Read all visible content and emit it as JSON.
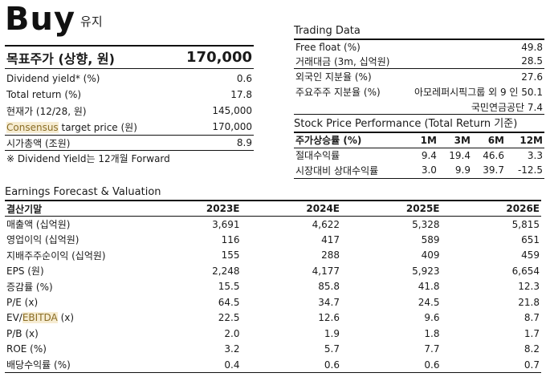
{
  "rating": {
    "main": "Buy",
    "sub": "유지"
  },
  "target": {
    "label": "목표주가 (상향, 원)",
    "value": "170,000"
  },
  "key_metrics": [
    {
      "label": "Dividend yield* (%)",
      "value": "0.6"
    },
    {
      "label": "Total return (%)",
      "value": "17.8"
    },
    {
      "label": "현재가 (12/28, 원)",
      "value": "145,000"
    },
    {
      "label_hl": "Consensus",
      "label_rest": " target price (원)",
      "value": "170,000"
    },
    {
      "label": "시가총액 (조원)",
      "value": "8.9"
    }
  ],
  "note": "※ Dividend Yield는 12개월 Forward",
  "trading": {
    "title": "Trading Data",
    "rows": [
      {
        "label": "Free float (%)",
        "value": "49.8"
      },
      {
        "label": "거래대금 (3m, 십억원)",
        "value": "28.5"
      },
      {
        "label": "외국인 지분율 (%)",
        "value": "27.6"
      },
      {
        "label": "주요주주 지분율 (%)",
        "value": "아모레퍼시픽그룹 외 9 인 50.1"
      },
      {
        "label": "",
        "value": "국민연금공단 7.4"
      }
    ]
  },
  "performance": {
    "title": "Stock Price Performance (Total Return 기준)",
    "headers": [
      "주가상승률 (%)",
      "1M",
      "3M",
      "6M",
      "12M"
    ],
    "rows": [
      [
        "절대수익률",
        "9.4",
        "19.4",
        "46.6",
        "3.3"
      ],
      [
        "시장대비 상대수익률",
        "3.0",
        "9.9",
        "39.7",
        "-12.5"
      ]
    ]
  },
  "earnings": {
    "title": "Earnings Forecast & Valuation",
    "headers": [
      "결산기말",
      "2023E",
      "2024E",
      "2025E",
      "2026E"
    ],
    "rows": [
      {
        "label": "매출액 (십억원)",
        "values": [
          "3,691",
          "4,622",
          "5,328",
          "5,815"
        ]
      },
      {
        "label": "영업이익 (십억원)",
        "values": [
          "116",
          "417",
          "589",
          "651"
        ]
      },
      {
        "label": "지배주주순이익 (십억원)",
        "values": [
          "155",
          "288",
          "409",
          "459"
        ]
      },
      {
        "label": "EPS (원)",
        "values": [
          "2,248",
          "4,177",
          "5,923",
          "6,654"
        ]
      },
      {
        "label": "증감률 (%)",
        "values": [
          "15.5",
          "85.8",
          "41.8",
          "12.3"
        ]
      },
      {
        "label": "P/E (x)",
        "values": [
          "64.5",
          "34.7",
          "24.5",
          "21.8"
        ]
      },
      {
        "label_pre": "EV/",
        "label_hl": "EBITDA",
        "label_post": " (x)",
        "values": [
          "22.5",
          "12.6",
          "9.6",
          "8.7"
        ]
      },
      {
        "label": "P/B (x)",
        "values": [
          "2.0",
          "1.9",
          "1.8",
          "1.7"
        ]
      },
      {
        "label": "ROE (%)",
        "values": [
          "3.2",
          "5.7",
          "7.7",
          "8.2"
        ]
      },
      {
        "label": "배당수익률 (%)",
        "values": [
          "0.4",
          "0.6",
          "0.6",
          "0.7"
        ]
      }
    ]
  },
  "colors": {
    "highlight_bg": "#f6ecd2",
    "highlight_text": "#8a6d25",
    "rule": "#111111"
  }
}
